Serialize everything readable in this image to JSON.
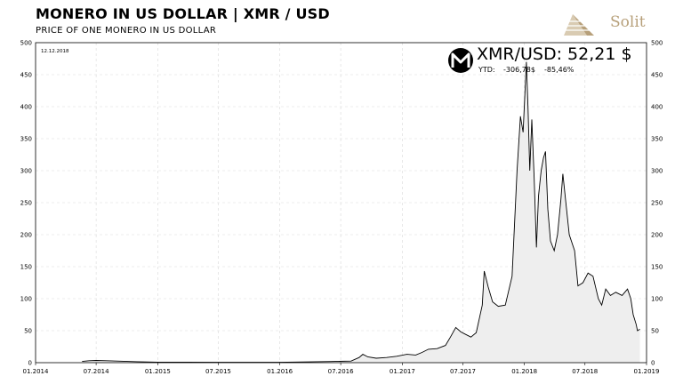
{
  "header": {
    "title": "MONERO IN US DOLLAR | XMR / USD",
    "subtitle": "PRICE OF ONE MONERO IN US DOLLAR",
    "brand": "Solit"
  },
  "colors": {
    "line": "#000000",
    "area": "#eeeeee",
    "grid": "#d9d9d9",
    "logo": "#b7a07a",
    "badge": "#000000"
  },
  "annotation": {
    "date": "12.12.2018",
    "ticker": "XMR/USD: 52,21 $",
    "ytd_label": "YTD:",
    "ytd_abs": "-306,78$",
    "ytd_pct": "-85,46%",
    "icon": "monero-icon"
  },
  "chart_data": {
    "type": "area",
    "title": "MONERO IN US DOLLAR | XMR / USD",
    "subtitle": "PRICE OF ONE MONERO IN US DOLLAR",
    "xlabel": "",
    "ylabel": "",
    "ylim": [
      0,
      500
    ],
    "yticks": [
      0,
      50,
      100,
      150,
      200,
      250,
      300,
      350,
      400,
      450,
      500
    ],
    "xlim": [
      "2014-01-01",
      "2019-01-01"
    ],
    "xticks": [
      {
        "date": "2014-01-01",
        "label": "01.2014"
      },
      {
        "date": "2014-07-01",
        "label": "07.2014"
      },
      {
        "date": "2015-01-01",
        "label": "01.2015"
      },
      {
        "date": "2015-07-01",
        "label": "07.2015"
      },
      {
        "date": "2016-01-01",
        "label": "01.2016"
      },
      {
        "date": "2016-07-01",
        "label": "07.2016"
      },
      {
        "date": "2017-01-01",
        "label": "01.2017"
      },
      {
        "date": "2017-07-01",
        "label": "07.2017"
      },
      {
        "date": "2018-01-01",
        "label": "01.2018"
      },
      {
        "date": "2018-07-01",
        "label": "07.2018"
      },
      {
        "date": "2019-01-01",
        "label": "01.2019"
      }
    ],
    "grid": true,
    "y_axis_both_sides": true,
    "series": [
      {
        "points": [
          [
            "2014-05-20",
            2
          ],
          [
            "2014-06-10",
            3
          ],
          [
            "2014-07-01",
            3.5
          ],
          [
            "2014-08-01",
            3
          ],
          [
            "2014-09-01",
            2.5
          ],
          [
            "2014-10-01",
            2
          ],
          [
            "2014-11-01",
            1.5
          ],
          [
            "2015-01-01",
            0.8
          ],
          [
            "2015-04-01",
            0.8
          ],
          [
            "2015-07-01",
            0.6
          ],
          [
            "2015-10-01",
            0.5
          ],
          [
            "2016-01-01",
            0.6
          ],
          [
            "2016-04-01",
            1.2
          ],
          [
            "2016-06-01",
            1.8
          ],
          [
            "2016-08-01",
            2.5
          ],
          [
            "2016-08-25",
            8
          ],
          [
            "2016-09-05",
            13
          ],
          [
            "2016-09-20",
            9
          ],
          [
            "2016-10-15",
            7
          ],
          [
            "2016-11-15",
            8
          ],
          [
            "2016-12-15",
            10
          ],
          [
            "2017-01-15",
            13
          ],
          [
            "2017-02-10",
            12
          ],
          [
            "2017-03-01",
            16
          ],
          [
            "2017-03-20",
            21
          ],
          [
            "2017-04-15",
            22
          ],
          [
            "2017-05-10",
            27
          ],
          [
            "2017-05-25",
            40
          ],
          [
            "2017-06-10",
            55
          ],
          [
            "2017-06-25",
            48
          ],
          [
            "2017-07-10",
            44
          ],
          [
            "2017-07-25",
            40
          ],
          [
            "2017-08-10",
            47
          ],
          [
            "2017-08-28",
            90
          ],
          [
            "2017-09-03",
            143
          ],
          [
            "2017-09-15",
            118
          ],
          [
            "2017-09-28",
            95
          ],
          [
            "2017-10-15",
            88
          ],
          [
            "2017-11-05",
            90
          ],
          [
            "2017-11-25",
            135
          ],
          [
            "2017-12-10",
            300
          ],
          [
            "2017-12-20",
            385
          ],
          [
            "2017-12-28",
            360
          ],
          [
            "2018-01-07",
            470
          ],
          [
            "2018-01-12",
            395
          ],
          [
            "2018-01-17",
            300
          ],
          [
            "2018-01-23",
            380
          ],
          [
            "2018-01-30",
            290
          ],
          [
            "2018-02-06",
            180
          ],
          [
            "2018-02-12",
            260
          ],
          [
            "2018-02-20",
            300
          ],
          [
            "2018-02-27",
            320
          ],
          [
            "2018-03-05",
            330
          ],
          [
            "2018-03-12",
            240
          ],
          [
            "2018-03-20",
            190
          ],
          [
            "2018-03-31",
            175
          ],
          [
            "2018-04-10",
            200
          ],
          [
            "2018-04-20",
            255
          ],
          [
            "2018-04-26",
            295
          ],
          [
            "2018-05-05",
            250
          ],
          [
            "2018-05-15",
            200
          ],
          [
            "2018-05-31",
            175
          ],
          [
            "2018-06-10",
            120
          ],
          [
            "2018-06-25",
            125
          ],
          [
            "2018-07-10",
            140
          ],
          [
            "2018-07-25",
            135
          ],
          [
            "2018-08-10",
            100
          ],
          [
            "2018-08-20",
            90
          ],
          [
            "2018-09-01",
            115
          ],
          [
            "2018-09-15",
            105
          ],
          [
            "2018-10-01",
            110
          ],
          [
            "2018-10-20",
            105
          ],
          [
            "2018-11-05",
            115
          ],
          [
            "2018-11-15",
            100
          ],
          [
            "2018-11-22",
            75
          ],
          [
            "2018-12-01",
            60
          ],
          [
            "2018-12-05",
            50
          ],
          [
            "2018-12-12",
            52.21
          ]
        ]
      }
    ]
  }
}
